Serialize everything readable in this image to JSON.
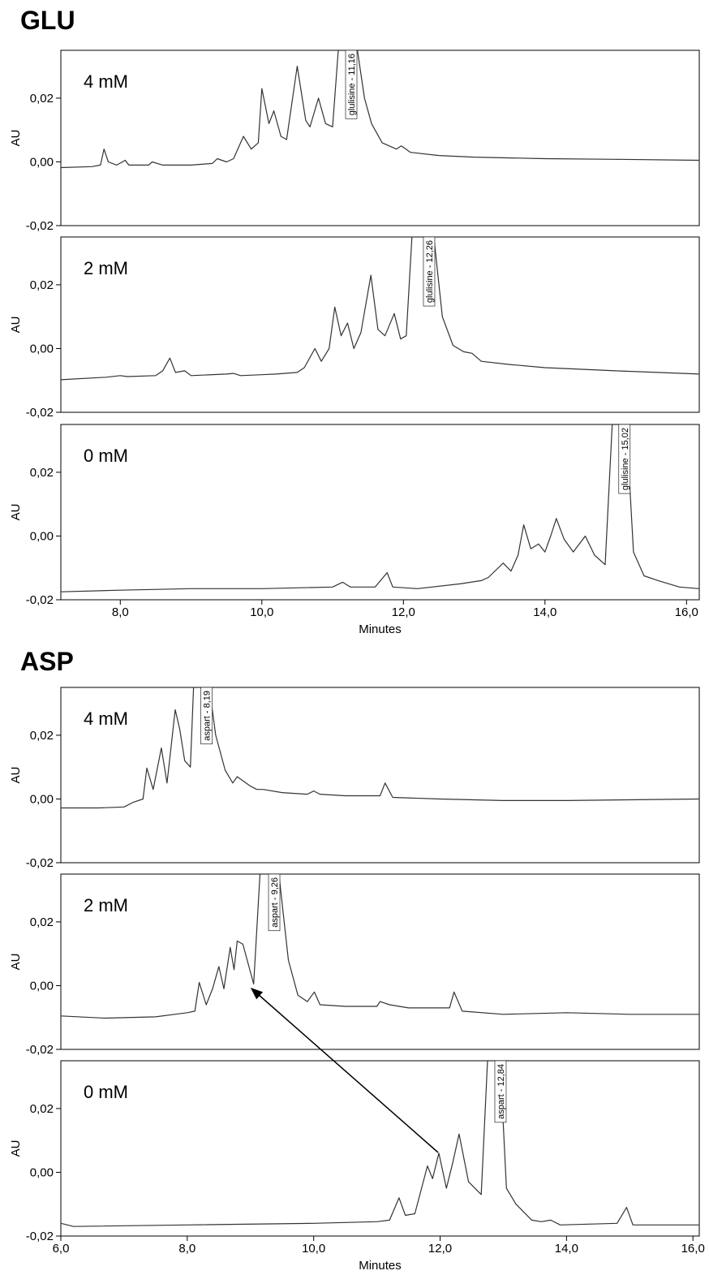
{
  "chart_data": [
    {
      "type": "line",
      "title": "GLU",
      "xlabel": "Minutes",
      "ylabel": "AU",
      "color": "#333333",
      "xlim": [
        7.16,
        16.18
      ],
      "xticks": [
        {
          "value": 8,
          "label": "8,0"
        },
        {
          "value": 10,
          "label": "10,0"
        },
        {
          "value": 12,
          "label": "12,0"
        },
        {
          "value": 14,
          "label": "14,0"
        },
        {
          "value": 16,
          "label": "16,0"
        }
      ],
      "ylim": [
        -0.02,
        0.035
      ],
      "yticks": [
        {
          "value": -0.02,
          "label": "-0,02"
        },
        {
          "value": 0,
          "label": "0,00"
        },
        {
          "value": 0.02,
          "label": "0,02"
        }
      ],
      "panels": [
        {
          "label": "4 mM",
          "peak_label": {
            "text": "glulisine - 11,16",
            "x": 11.16
          },
          "x": [
            7.16,
            7.6,
            7.72,
            7.77,
            7.83,
            7.95,
            8.07,
            8.12,
            8.4,
            8.45,
            8.6,
            9.0,
            9.3,
            9.37,
            9.5,
            9.6,
            9.74,
            9.85,
            9.95,
            10.0,
            10.1,
            10.17,
            10.27,
            10.35,
            10.5,
            10.62,
            10.68,
            10.8,
            10.9,
            11.0,
            11.08,
            11.35,
            11.45,
            11.55,
            11.7,
            11.9,
            11.97,
            12.1,
            12.5,
            13.0,
            14.0,
            15.0,
            16.18
          ],
          "values": [
            -0.0018,
            -0.0015,
            -0.001,
            0.004,
            0.0,
            -0.001,
            0.0005,
            -0.001,
            -0.001,
            0.0,
            -0.001,
            -0.001,
            -0.0005,
            0.001,
            0.0,
            0.001,
            0.008,
            0.004,
            0.006,
            0.023,
            0.012,
            0.016,
            0.008,
            0.007,
            0.03,
            0.013,
            0.011,
            0.02,
            0.012,
            0.011,
            0.035,
            0.035,
            0.02,
            0.012,
            0.006,
            0.004,
            0.005,
            0.003,
            0.002,
            0.0015,
            0.001,
            0.0008,
            0.0005
          ]
        },
        {
          "label": "2 mM",
          "peak_label": {
            "text": "glulisine - 12,26",
            "x": 12.26
          },
          "x": [
            7.16,
            7.8,
            8.0,
            8.1,
            8.5,
            8.6,
            8.7,
            8.78,
            8.91,
            9.0,
            9.5,
            9.6,
            9.7,
            10.0,
            10.2,
            10.5,
            10.6,
            10.75,
            10.84,
            10.95,
            11.03,
            11.12,
            11.21,
            11.3,
            11.4,
            11.54,
            11.64,
            11.74,
            11.87,
            11.96,
            12.04,
            12.12,
            12.43,
            12.55,
            12.7,
            12.85,
            12.97,
            13.1,
            13.5,
            14.0,
            15.0,
            16.18
          ],
          "values": [
            -0.0098,
            -0.009,
            -0.0085,
            -0.0088,
            -0.0085,
            -0.007,
            -0.003,
            -0.0075,
            -0.007,
            -0.0085,
            -0.008,
            -0.0078,
            -0.0085,
            -0.0082,
            -0.008,
            -0.0075,
            -0.006,
            0.0,
            -0.004,
            0.0,
            0.013,
            0.004,
            0.008,
            0.0,
            0.005,
            0.023,
            0.006,
            0.004,
            0.011,
            0.003,
            0.004,
            0.035,
            0.035,
            0.01,
            0.001,
            -0.001,
            -0.0015,
            -0.004,
            -0.005,
            -0.006,
            -0.007,
            -0.008
          ]
        },
        {
          "label": "0 mM",
          "peak_label": {
            "text": "glulisine - 15,02",
            "x": 15.02
          },
          "x": [
            7.16,
            8.0,
            9.0,
            10.0,
            11.0,
            11.14,
            11.25,
            11.6,
            11.77,
            11.85,
            12.2,
            12.8,
            13.1,
            13.2,
            13.41,
            13.52,
            13.62,
            13.7,
            13.8,
            13.91,
            14.0,
            14.08,
            14.16,
            14.27,
            14.4,
            14.57,
            14.7,
            14.85,
            14.95,
            15.15,
            15.25,
            15.4,
            15.6,
            15.9,
            16.18
          ],
          "values": [
            -0.0175,
            -0.017,
            -0.0165,
            -0.0165,
            -0.016,
            -0.0145,
            -0.016,
            -0.016,
            -0.0115,
            -0.016,
            -0.0165,
            -0.015,
            -0.014,
            -0.013,
            -0.0085,
            -0.011,
            -0.006,
            0.0035,
            -0.004,
            -0.0025,
            -0.005,
            0.0,
            0.0055,
            -0.001,
            -0.005,
            0.0,
            -0.006,
            -0.009,
            0.035,
            0.035,
            -0.005,
            -0.0125,
            -0.014,
            -0.016,
            -0.0165
          ]
        }
      ]
    },
    {
      "type": "line",
      "title": "ASP",
      "xlabel": "Minutes",
      "ylabel": "AU",
      "color": "#333333",
      "xlim": [
        6.0,
        16.1
      ],
      "xticks": [
        {
          "value": 6,
          "label": "6,0"
        },
        {
          "value": 8,
          "label": "8,0"
        },
        {
          "value": 10,
          "label": "10,0"
        },
        {
          "value": 12,
          "label": "12,0"
        },
        {
          "value": 14,
          "label": "14,0"
        },
        {
          "value": 16,
          "label": "16,0"
        }
      ],
      "ylim": [
        -0.02,
        0.035
      ],
      "yticks": [
        {
          "value": -0.02,
          "label": "-0,02"
        },
        {
          "value": 0,
          "label": "0,00"
        },
        {
          "value": 0.02,
          "label": "0,02"
        }
      ],
      "panels": [
        {
          "label": "4 mM",
          "peak_label": {
            "text": "aspart - 8,19",
            "x": 8.19
          },
          "x": [
            6.0,
            6.6,
            7.0,
            7.15,
            7.3,
            7.36,
            7.46,
            7.59,
            7.68,
            7.81,
            7.88,
            7.96,
            8.05,
            8.1,
            8.35,
            8.45,
            8.6,
            8.72,
            8.79,
            9.0,
            9.1,
            9.2,
            9.5,
            9.9,
            10.0,
            10.1,
            10.5,
            11.05,
            11.13,
            11.25,
            12.0,
            13.0,
            14.0,
            16.1
          ],
          "values": [
            -0.0028,
            -0.0028,
            -0.0025,
            -0.001,
            0.0,
            0.0097,
            0.003,
            0.016,
            0.005,
            0.028,
            0.022,
            0.012,
            0.01,
            0.035,
            0.035,
            0.02,
            0.009,
            0.005,
            0.007,
            0.004,
            0.003,
            0.003,
            0.002,
            0.0015,
            0.0025,
            0.0015,
            0.001,
            0.001,
            0.005,
            0.0005,
            0.0,
            -0.0005,
            -0.0005,
            0.0
          ]
        },
        {
          "label": "2 mM",
          "peak_label": {
            "text": "aspart - 9,26",
            "x": 9.26
          },
          "x": [
            6.0,
            6.7,
            7.5,
            7.8,
            8.0,
            8.12,
            8.19,
            8.3,
            8.4,
            8.5,
            8.58,
            8.68,
            8.74,
            8.79,
            8.88,
            9.05,
            9.15,
            9.45,
            9.6,
            9.75,
            9.9,
            10.01,
            10.1,
            10.5,
            11.0,
            11.05,
            11.2,
            11.5,
            12.15,
            12.22,
            12.35,
            13.0,
            14.0,
            15.0,
            16.1
          ],
          "values": [
            -0.0095,
            -0.0102,
            -0.0098,
            -0.009,
            -0.0085,
            -0.008,
            0.001,
            -0.006,
            -0.001,
            0.006,
            -0.001,
            0.012,
            0.005,
            0.014,
            0.013,
            0.0005,
            0.035,
            0.035,
            0.008,
            -0.003,
            -0.005,
            -0.002,
            -0.006,
            -0.0065,
            -0.0065,
            -0.005,
            -0.006,
            -0.007,
            -0.007,
            -0.002,
            -0.008,
            -0.009,
            -0.0085,
            -0.009,
            -0.009
          ]
        },
        {
          "label": "0 mM",
          "peak_label": {
            "text": "aspart - 12,84",
            "x": 12.84
          },
          "x": [
            6.0,
            6.2,
            8.0,
            10.0,
            11.0,
            11.2,
            11.35,
            11.45,
            11.6,
            11.8,
            11.88,
            11.98,
            12.1,
            12.2,
            12.3,
            12.45,
            12.65,
            12.75,
            12.95,
            13.05,
            13.2,
            13.45,
            13.6,
            13.75,
            13.9,
            14.8,
            14.95,
            15.05,
            16.1
          ],
          "values": [
            -0.016,
            -0.017,
            -0.0165,
            -0.016,
            -0.0155,
            -0.015,
            -0.008,
            -0.0135,
            -0.013,
            0.002,
            -0.002,
            0.006,
            -0.005,
            0.003,
            0.012,
            -0.003,
            -0.007,
            0.035,
            0.035,
            -0.005,
            -0.01,
            -0.015,
            -0.0155,
            -0.015,
            -0.0165,
            -0.016,
            -0.011,
            -0.0165,
            -0.0165
          ]
        }
      ]
    }
  ]
}
